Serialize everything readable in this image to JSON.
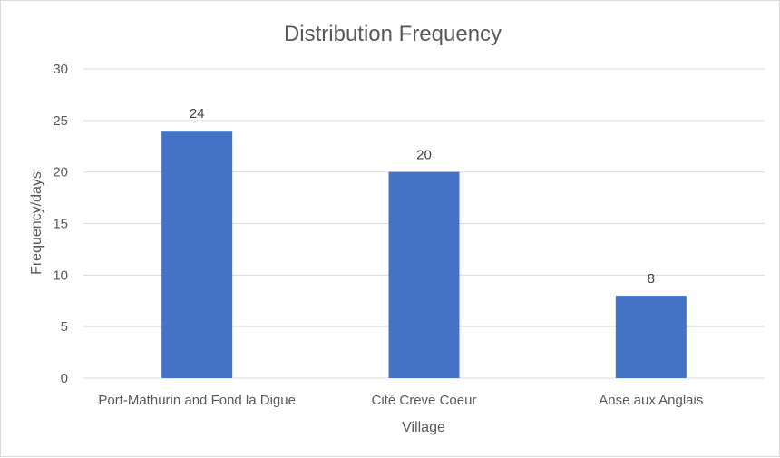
{
  "chart_data": {
    "type": "bar",
    "title": "Distribution Frequency",
    "xlabel": "Village",
    "ylabel": "Frequency/days",
    "categories": [
      "Port-Mathurin and Fond la Digue",
      "Cité Creve Coeur",
      "Anse aux Anglais"
    ],
    "values": [
      24,
      20,
      8
    ],
    "ylim": [
      0,
      30
    ],
    "yticks": [
      0,
      5,
      10,
      15,
      20,
      25,
      30
    ],
    "bar_color": "#4472c4",
    "grid": true,
    "legend": "none"
  }
}
